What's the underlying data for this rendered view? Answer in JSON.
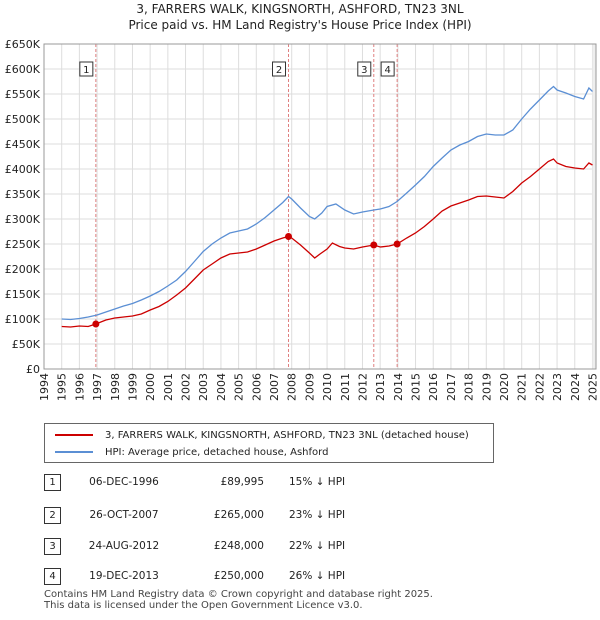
{
  "title_line1": "3, FARRERS WALK, KINGSNORTH, ASHFORD, TN23 3NL",
  "title_line2": "Price paid vs. HM Land Registry's House Price Index (HPI)",
  "colors": {
    "property": "#cc0000",
    "hpi": "#5b8fd4",
    "grid": "#dddddd",
    "marker_line": "#e08080"
  },
  "chart_data": {
    "type": "line",
    "ylim": [
      0,
      650000
    ],
    "xlim": [
      1994,
      2025.2
    ],
    "y_ticks": [
      0,
      50000,
      100000,
      150000,
      200000,
      250000,
      300000,
      350000,
      400000,
      450000,
      500000,
      550000,
      600000,
      650000
    ],
    "y_tick_labels": [
      "£0",
      "£50K",
      "£100K",
      "£150K",
      "£200K",
      "£250K",
      "£300K",
      "£350K",
      "£400K",
      "£450K",
      "£500K",
      "£550K",
      "£600K",
      "£650K"
    ],
    "x_ticks": [
      1994,
      1995,
      1996,
      1997,
      1998,
      1999,
      2000,
      2001,
      2002,
      2003,
      2004,
      2005,
      2006,
      2007,
      2008,
      2009,
      2010,
      2011,
      2012,
      2013,
      2014,
      2015,
      2016,
      2017,
      2018,
      2019,
      2020,
      2021,
      2022,
      2023,
      2024,
      2025
    ],
    "x_tick_labels": [
      "1994",
      "1995",
      "1996",
      "1997",
      "1998",
      "1999",
      "2000",
      "2001",
      "2002",
      "2003",
      "2004",
      "2005",
      "2006",
      "2007",
      "2008",
      "2009",
      "2010",
      "2011",
      "2012",
      "2013",
      "2014",
      "2015",
      "2016",
      "2017",
      "2018",
      "2019",
      "2020",
      "2021",
      "2022",
      "2023",
      "2024",
      "2025"
    ],
    "series": [
      {
        "name": "3, FARRERS WALK, KINGSNORTH, ASHFORD, TN23 3NL (detached house)",
        "color": "#cc0000",
        "points": [
          [
            1995.0,
            85000
          ],
          [
            1995.5,
            84000
          ],
          [
            1996.0,
            86000
          ],
          [
            1996.5,
            85000
          ],
          [
            1996.93,
            89995
          ],
          [
            1997.5,
            98000
          ],
          [
            1998.0,
            102000
          ],
          [
            1998.5,
            104000
          ],
          [
            1999.0,
            106000
          ],
          [
            1999.5,
            110000
          ],
          [
            2000.0,
            118000
          ],
          [
            2000.5,
            125000
          ],
          [
            2001.0,
            135000
          ],
          [
            2001.5,
            148000
          ],
          [
            2002.0,
            162000
          ],
          [
            2002.5,
            180000
          ],
          [
            2003.0,
            198000
          ],
          [
            2003.5,
            210000
          ],
          [
            2004.0,
            222000
          ],
          [
            2004.5,
            230000
          ],
          [
            2005.0,
            232000
          ],
          [
            2005.5,
            234000
          ],
          [
            2006.0,
            240000
          ],
          [
            2006.5,
            248000
          ],
          [
            2007.0,
            256000
          ],
          [
            2007.5,
            262000
          ],
          [
            2007.82,
            265000
          ],
          [
            2008.0,
            262000
          ],
          [
            2008.5,
            248000
          ],
          [
            2009.0,
            232000
          ],
          [
            2009.3,
            222000
          ],
          [
            2009.6,
            230000
          ],
          [
            2010.0,
            240000
          ],
          [
            2010.3,
            252000
          ],
          [
            2010.7,
            245000
          ],
          [
            2011.0,
            242000
          ],
          [
            2011.5,
            240000
          ],
          [
            2012.0,
            244000
          ],
          [
            2012.64,
            248000
          ],
          [
            2013.0,
            244000
          ],
          [
            2013.5,
            246000
          ],
          [
            2013.96,
            250000
          ],
          [
            2014.5,
            262000
          ],
          [
            2015.0,
            272000
          ],
          [
            2015.5,
            285000
          ],
          [
            2016.0,
            300000
          ],
          [
            2016.5,
            316000
          ],
          [
            2017.0,
            326000
          ],
          [
            2017.5,
            332000
          ],
          [
            2018.0,
            338000
          ],
          [
            2018.5,
            345000
          ],
          [
            2019.0,
            346000
          ],
          [
            2019.5,
            344000
          ],
          [
            2020.0,
            342000
          ],
          [
            2020.5,
            355000
          ],
          [
            2021.0,
            372000
          ],
          [
            2021.5,
            385000
          ],
          [
            2022.0,
            400000
          ],
          [
            2022.5,
            415000
          ],
          [
            2022.8,
            420000
          ],
          [
            2023.0,
            412000
          ],
          [
            2023.5,
            405000
          ],
          [
            2024.0,
            402000
          ],
          [
            2024.5,
            400000
          ],
          [
            2024.8,
            412000
          ],
          [
            2025.0,
            408000
          ]
        ]
      },
      {
        "name": "HPI: Average price, detached house, Ashford",
        "color": "#5b8fd4",
        "points": [
          [
            1995.0,
            100000
          ],
          [
            1995.5,
            99000
          ],
          [
            1996.0,
            101000
          ],
          [
            1996.5,
            104000
          ],
          [
            1997.0,
            108000
          ],
          [
            1997.5,
            114000
          ],
          [
            1998.0,
            120000
          ],
          [
            1998.5,
            126000
          ],
          [
            1999.0,
            131000
          ],
          [
            1999.5,
            138000
          ],
          [
            2000.0,
            146000
          ],
          [
            2000.5,
            155000
          ],
          [
            2001.0,
            166000
          ],
          [
            2001.5,
            178000
          ],
          [
            2002.0,
            195000
          ],
          [
            2002.5,
            215000
          ],
          [
            2003.0,
            235000
          ],
          [
            2003.5,
            250000
          ],
          [
            2004.0,
            262000
          ],
          [
            2004.5,
            272000
          ],
          [
            2005.0,
            276000
          ],
          [
            2005.5,
            280000
          ],
          [
            2006.0,
            290000
          ],
          [
            2006.5,
            303000
          ],
          [
            2007.0,
            318000
          ],
          [
            2007.5,
            333000
          ],
          [
            2007.82,
            345000
          ],
          [
            2008.0,
            340000
          ],
          [
            2008.5,
            322000
          ],
          [
            2009.0,
            305000
          ],
          [
            2009.3,
            300000
          ],
          [
            2009.7,
            312000
          ],
          [
            2010.0,
            325000
          ],
          [
            2010.5,
            330000
          ],
          [
            2011.0,
            318000
          ],
          [
            2011.5,
            310000
          ],
          [
            2012.0,
            314000
          ],
          [
            2012.64,
            318000
          ],
          [
            2013.0,
            320000
          ],
          [
            2013.5,
            325000
          ],
          [
            2013.96,
            335000
          ],
          [
            2014.5,
            352000
          ],
          [
            2015.0,
            368000
          ],
          [
            2015.5,
            385000
          ],
          [
            2016.0,
            405000
          ],
          [
            2016.5,
            422000
          ],
          [
            2017.0,
            438000
          ],
          [
            2017.5,
            448000
          ],
          [
            2018.0,
            455000
          ],
          [
            2018.5,
            465000
          ],
          [
            2019.0,
            470000
          ],
          [
            2019.5,
            468000
          ],
          [
            2020.0,
            468000
          ],
          [
            2020.5,
            478000
          ],
          [
            2021.0,
            500000
          ],
          [
            2021.5,
            520000
          ],
          [
            2022.0,
            538000
          ],
          [
            2022.5,
            556000
          ],
          [
            2022.8,
            565000
          ],
          [
            2023.0,
            558000
          ],
          [
            2023.5,
            552000
          ],
          [
            2024.0,
            545000
          ],
          [
            2024.5,
            540000
          ],
          [
            2024.8,
            562000
          ],
          [
            2025.0,
            555000
          ]
        ]
      }
    ],
    "sales": [
      {
        "label": "1",
        "x": 1996.93,
        "y": 89995
      },
      {
        "label": "2",
        "x": 2007.82,
        "y": 265000
      },
      {
        "label": "3",
        "x": 2012.64,
        "y": 248000
      },
      {
        "label": "4",
        "x": 2013.96,
        "y": 250000
      }
    ],
    "marker_box_y": 600000
  },
  "legend": {
    "property": "3, FARRERS WALK, KINGSNORTH, ASHFORD, TN23 3NL (detached house)",
    "hpi": "HPI: Average price, detached house, Ashford"
  },
  "sales_table": [
    {
      "num": "1",
      "date": "06-DEC-1996",
      "price": "£89,995",
      "hpi": "15% ↓ HPI"
    },
    {
      "num": "2",
      "date": "26-OCT-2007",
      "price": "£265,000",
      "hpi": "23% ↓ HPI"
    },
    {
      "num": "3",
      "date": "24-AUG-2012",
      "price": "£248,000",
      "hpi": "22% ↓ HPI"
    },
    {
      "num": "4",
      "date": "19-DEC-2013",
      "price": "£250,000",
      "hpi": "26% ↓ HPI"
    }
  ],
  "footer_line1": "Contains HM Land Registry data © Crown copyright and database right 2025.",
  "footer_line2": "This data is licensed under the Open Government Licence v3.0."
}
